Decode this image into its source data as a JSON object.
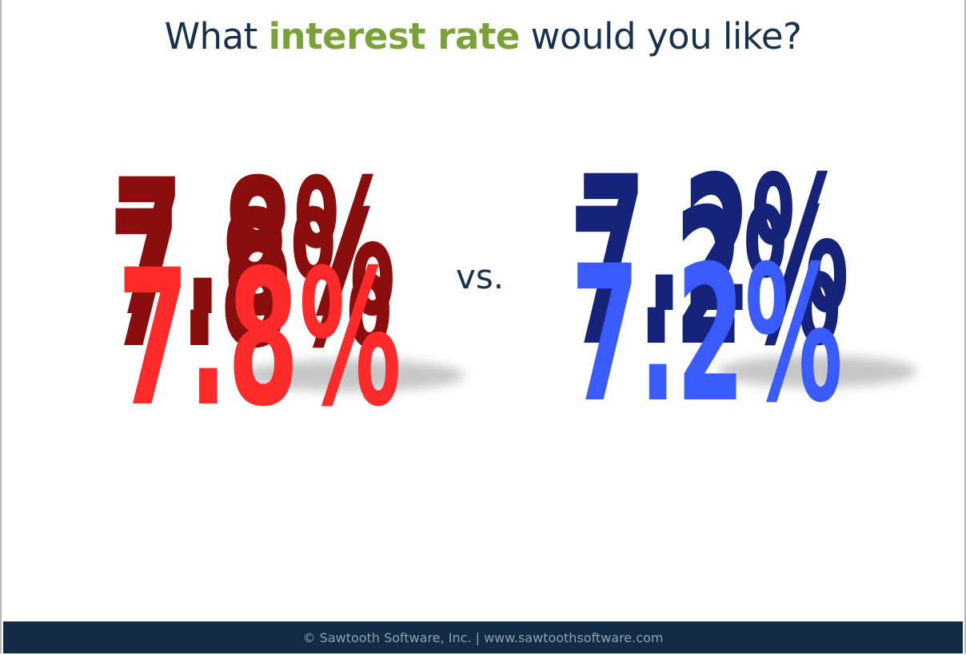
{
  "title": {
    "before": "What ",
    "accent": "interest rate",
    "after": " would you like?"
  },
  "options": [
    {
      "label": "7.8%",
      "color": "#ff2a2a",
      "side_color": "#8a0e0e"
    },
    {
      "label": "7.2%",
      "color": "#3a5bff",
      "side_color": "#16237a"
    }
  ],
  "separator": "vs.",
  "footer": "© Sawtooth Software, Inc. | www.sawtoothsoftware.com",
  "colors": {
    "title_text": "#17324d",
    "accent": "#7aa23a",
    "footer_bg": "#132b44"
  }
}
